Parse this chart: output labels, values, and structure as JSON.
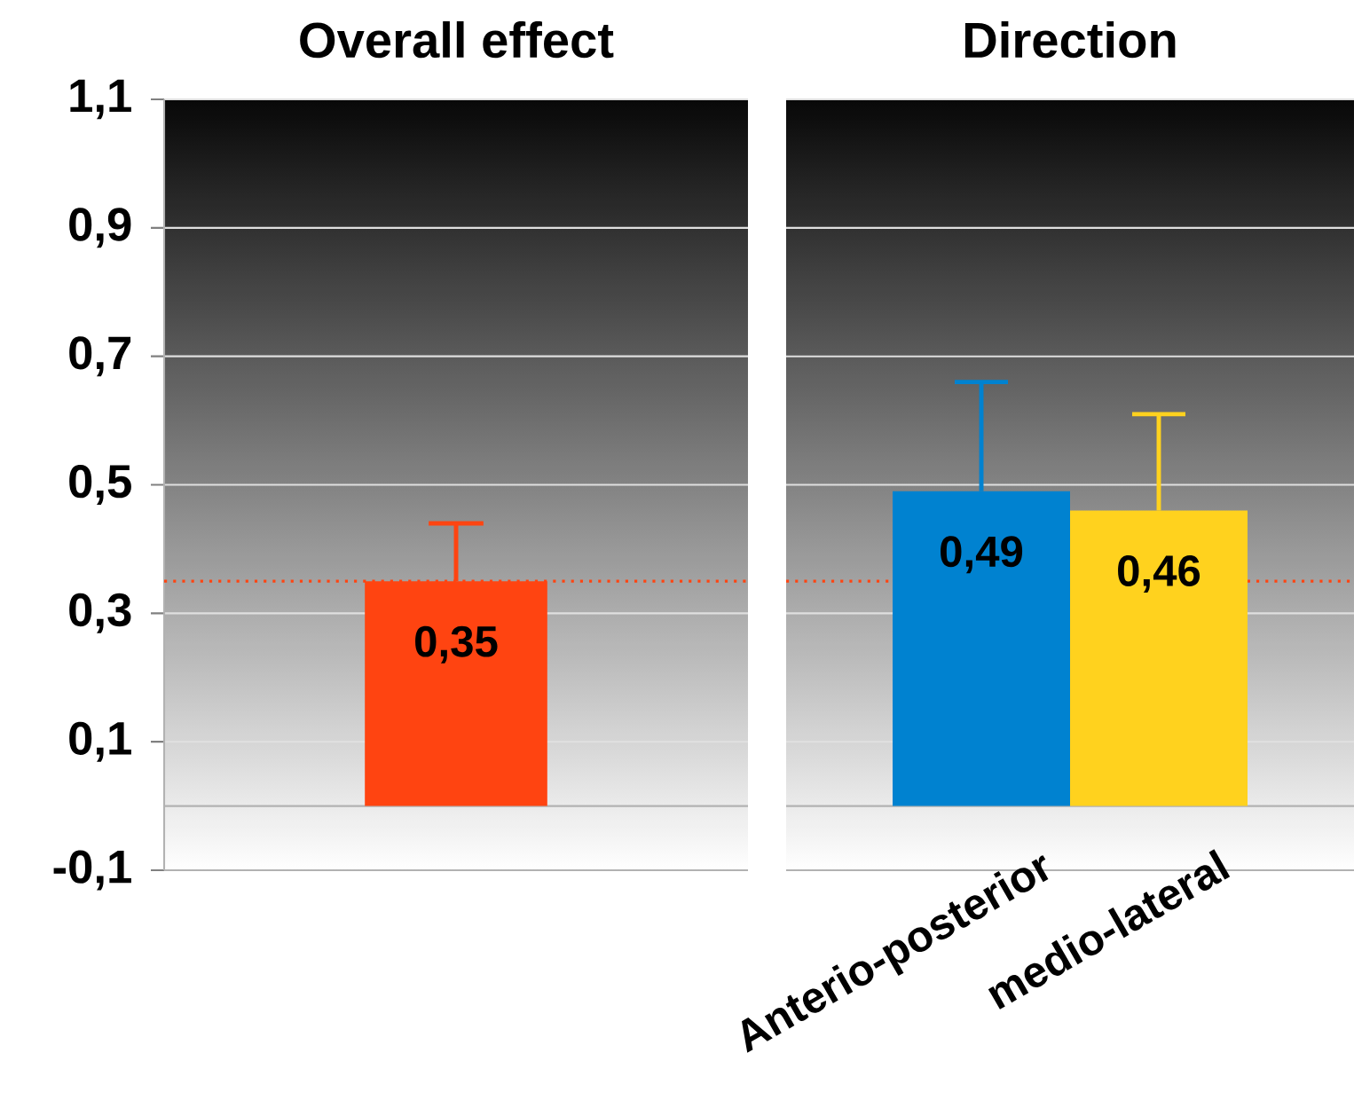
{
  "chart_data": [
    {
      "type": "bar",
      "title": "Overall effect",
      "categories": [
        null
      ],
      "values": [
        0.35
      ],
      "colors": [
        "#ff4411"
      ],
      "errors": [
        [
          0.35,
          0.44
        ]
      ],
      "value_labels": [
        "0,35"
      ],
      "ylim": [
        -0.1,
        1.1
      ],
      "yticks": [
        {
          "value": -0.1,
          "label": "-0,1"
        },
        {
          "value": 0.1,
          "label": "0,1"
        },
        {
          "value": 0.3,
          "label": "0,3"
        },
        {
          "value": 0.5,
          "label": "0,5"
        },
        {
          "value": 0.7,
          "label": "0,7"
        },
        {
          "value": 0.9,
          "label": "0,9"
        },
        {
          "value": 1.1,
          "label": "1,1"
        }
      ],
      "grid": "y",
      "tick_labels": "y",
      "ref_lines": [
        {
          "axis": "y",
          "value": 0.35,
          "color": "#ff4411",
          "line_style": "dotted"
        }
      ]
    },
    {
      "type": "bar",
      "title": "Direction",
      "categories": [
        "Anterio-posterior",
        "medio-lateral"
      ],
      "values": [
        0.49,
        0.46
      ],
      "colors": [
        "#0082d0",
        "#ffd21e"
      ],
      "errors": [
        [
          0.49,
          0.66
        ],
        [
          0.46,
          0.61
        ]
      ],
      "value_labels": [
        "0,49",
        "0,46"
      ],
      "ylim": [
        -0.1,
        1.1
      ],
      "yticks": [
        {
          "value": -0.1,
          "label": null
        },
        {
          "value": 0.1,
          "label": null
        },
        {
          "value": 0.3,
          "label": null
        },
        {
          "value": 0.5,
          "label": null
        },
        {
          "value": 0.7,
          "label": null
        },
        {
          "value": 0.9,
          "label": null
        },
        {
          "value": 1.1,
          "label": null
        }
      ],
      "grid": "y",
      "tick_labels": "x",
      "ref_lines": [
        {
          "axis": "y",
          "value": 0.35,
          "color": "#ff4411",
          "line_style": "dotted"
        }
      ]
    }
  ]
}
